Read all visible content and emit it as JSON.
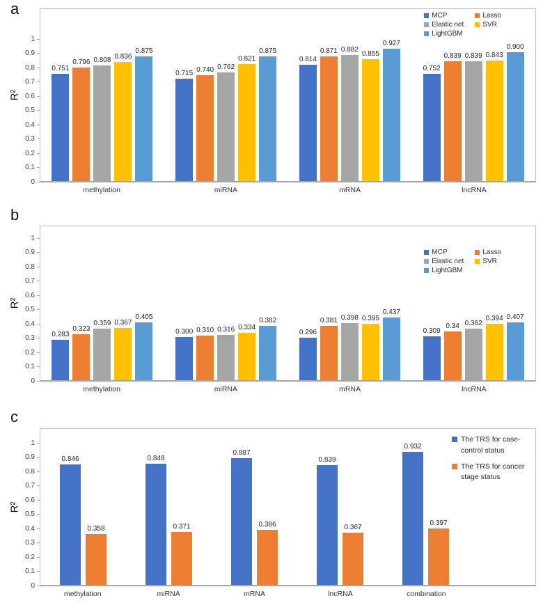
{
  "figure": {
    "description": "Three-panel bar chart figure comparing R-squared of models"
  },
  "chart_data": [
    {
      "panel_label": "a",
      "type": "bar",
      "title": "",
      "xlabel": "",
      "ylabel": "R²",
      "ylim": [
        0,
        1
      ],
      "ytick_step": 0.1,
      "grid": false,
      "legend_position": "top-right-inside",
      "legend_columns": 2,
      "categories": [
        "methylation",
        "miRNA",
        "mRNA",
        "lncRNA"
      ],
      "series": [
        {
          "name": "MCP",
          "color": "#4472C4",
          "values": [
            0.751,
            0.715,
            0.814,
            0.752
          ],
          "labels": [
            "0.751",
            "0.715",
            "0.814",
            "0.752"
          ]
        },
        {
          "name": "Lasso",
          "color": "#ED7D31",
          "values": [
            0.796,
            0.74,
            0.871,
            0.839
          ],
          "labels": [
            "0.796",
            "0.740",
            "0.871",
            "0.839"
          ]
        },
        {
          "name": "Elastic net",
          "color": "#A5A5A5",
          "values": [
            0.808,
            0.762,
            0.882,
            0.839
          ],
          "labels": [
            "0.808",
            "0.762",
            "0.882",
            "0.839"
          ]
        },
        {
          "name": "SVR",
          "color": "#FFC000",
          "values": [
            0.836,
            0.821,
            0.855,
            0.843
          ],
          "labels": [
            "0.836",
            "0.821",
            "0.855",
            "0.843"
          ]
        },
        {
          "name": "LightGBM",
          "color": "#5B9BD5",
          "values": [
            0.875,
            0.875,
            0.927,
            0.9
          ],
          "labels": [
            "0.875",
            "0.875",
            "0.927",
            "0.900"
          ]
        }
      ]
    },
    {
      "panel_label": "b",
      "type": "bar",
      "title": "",
      "xlabel": "",
      "ylabel": "R²",
      "ylim": [
        0,
        1
      ],
      "ytick_step": 0.1,
      "grid": false,
      "legend_position": "middle-right-inside",
      "legend_columns": 2,
      "categories": [
        "methylation",
        "miRNA",
        "mRNA",
        "lncRNA"
      ],
      "series": [
        {
          "name": "MCP",
          "color": "#4472C4",
          "values": [
            0.283,
            0.3,
            0.296,
            0.309
          ],
          "labels": [
            "0.283",
            "0.300",
            "0.296",
            "0.309"
          ]
        },
        {
          "name": "Lasso",
          "color": "#ED7D31",
          "values": [
            0.323,
            0.31,
            0.381,
            0.34
          ],
          "labels": [
            "0.323",
            "0.310",
            "0.381",
            "0.34"
          ]
        },
        {
          "name": "Elastic net",
          "color": "#A5A5A5",
          "values": [
            0.359,
            0.316,
            0.398,
            0.362
          ],
          "labels": [
            "0.359",
            "0.316",
            "0.398",
            "0.362"
          ]
        },
        {
          "name": "SVR",
          "color": "#FFC000",
          "values": [
            0.367,
            0.334,
            0.395,
            0.394
          ],
          "labels": [
            "0.367",
            "0.334",
            "0.395",
            "0.394"
          ]
        },
        {
          "name": "LightGBM",
          "color": "#5B9BD5",
          "values": [
            0.405,
            0.382,
            0.437,
            0.407
          ],
          "labels": [
            "0.405",
            "0.382",
            "0.437",
            "0.407"
          ]
        }
      ]
    },
    {
      "panel_label": "c",
      "type": "bar",
      "title": "",
      "xlabel": "",
      "ylabel": "R²",
      "ylim": [
        0,
        1
      ],
      "ytick_step": 0.1,
      "grid": false,
      "legend_position": "right",
      "legend_columns": 1,
      "categories": [
        "methylation",
        "miRNA",
        "mRNA",
        "lncRNA",
        "combination"
      ],
      "series": [
        {
          "name": "The TRS for case-control status",
          "color": "#4472C4",
          "values": [
            0.846,
            0.848,
            0.887,
            0.839,
            0.932
          ],
          "labels": [
            "0.846",
            "0.848",
            "0.887",
            "0.839",
            "0.932"
          ]
        },
        {
          "name": "The TRS for cancer stage status",
          "color": "#ED7D31",
          "values": [
            0.358,
            0.371,
            0.386,
            0.367,
            0.397
          ],
          "labels": [
            "0.358",
            "0.371",
            "0.386",
            "0.367",
            "0.397"
          ]
        }
      ]
    }
  ]
}
